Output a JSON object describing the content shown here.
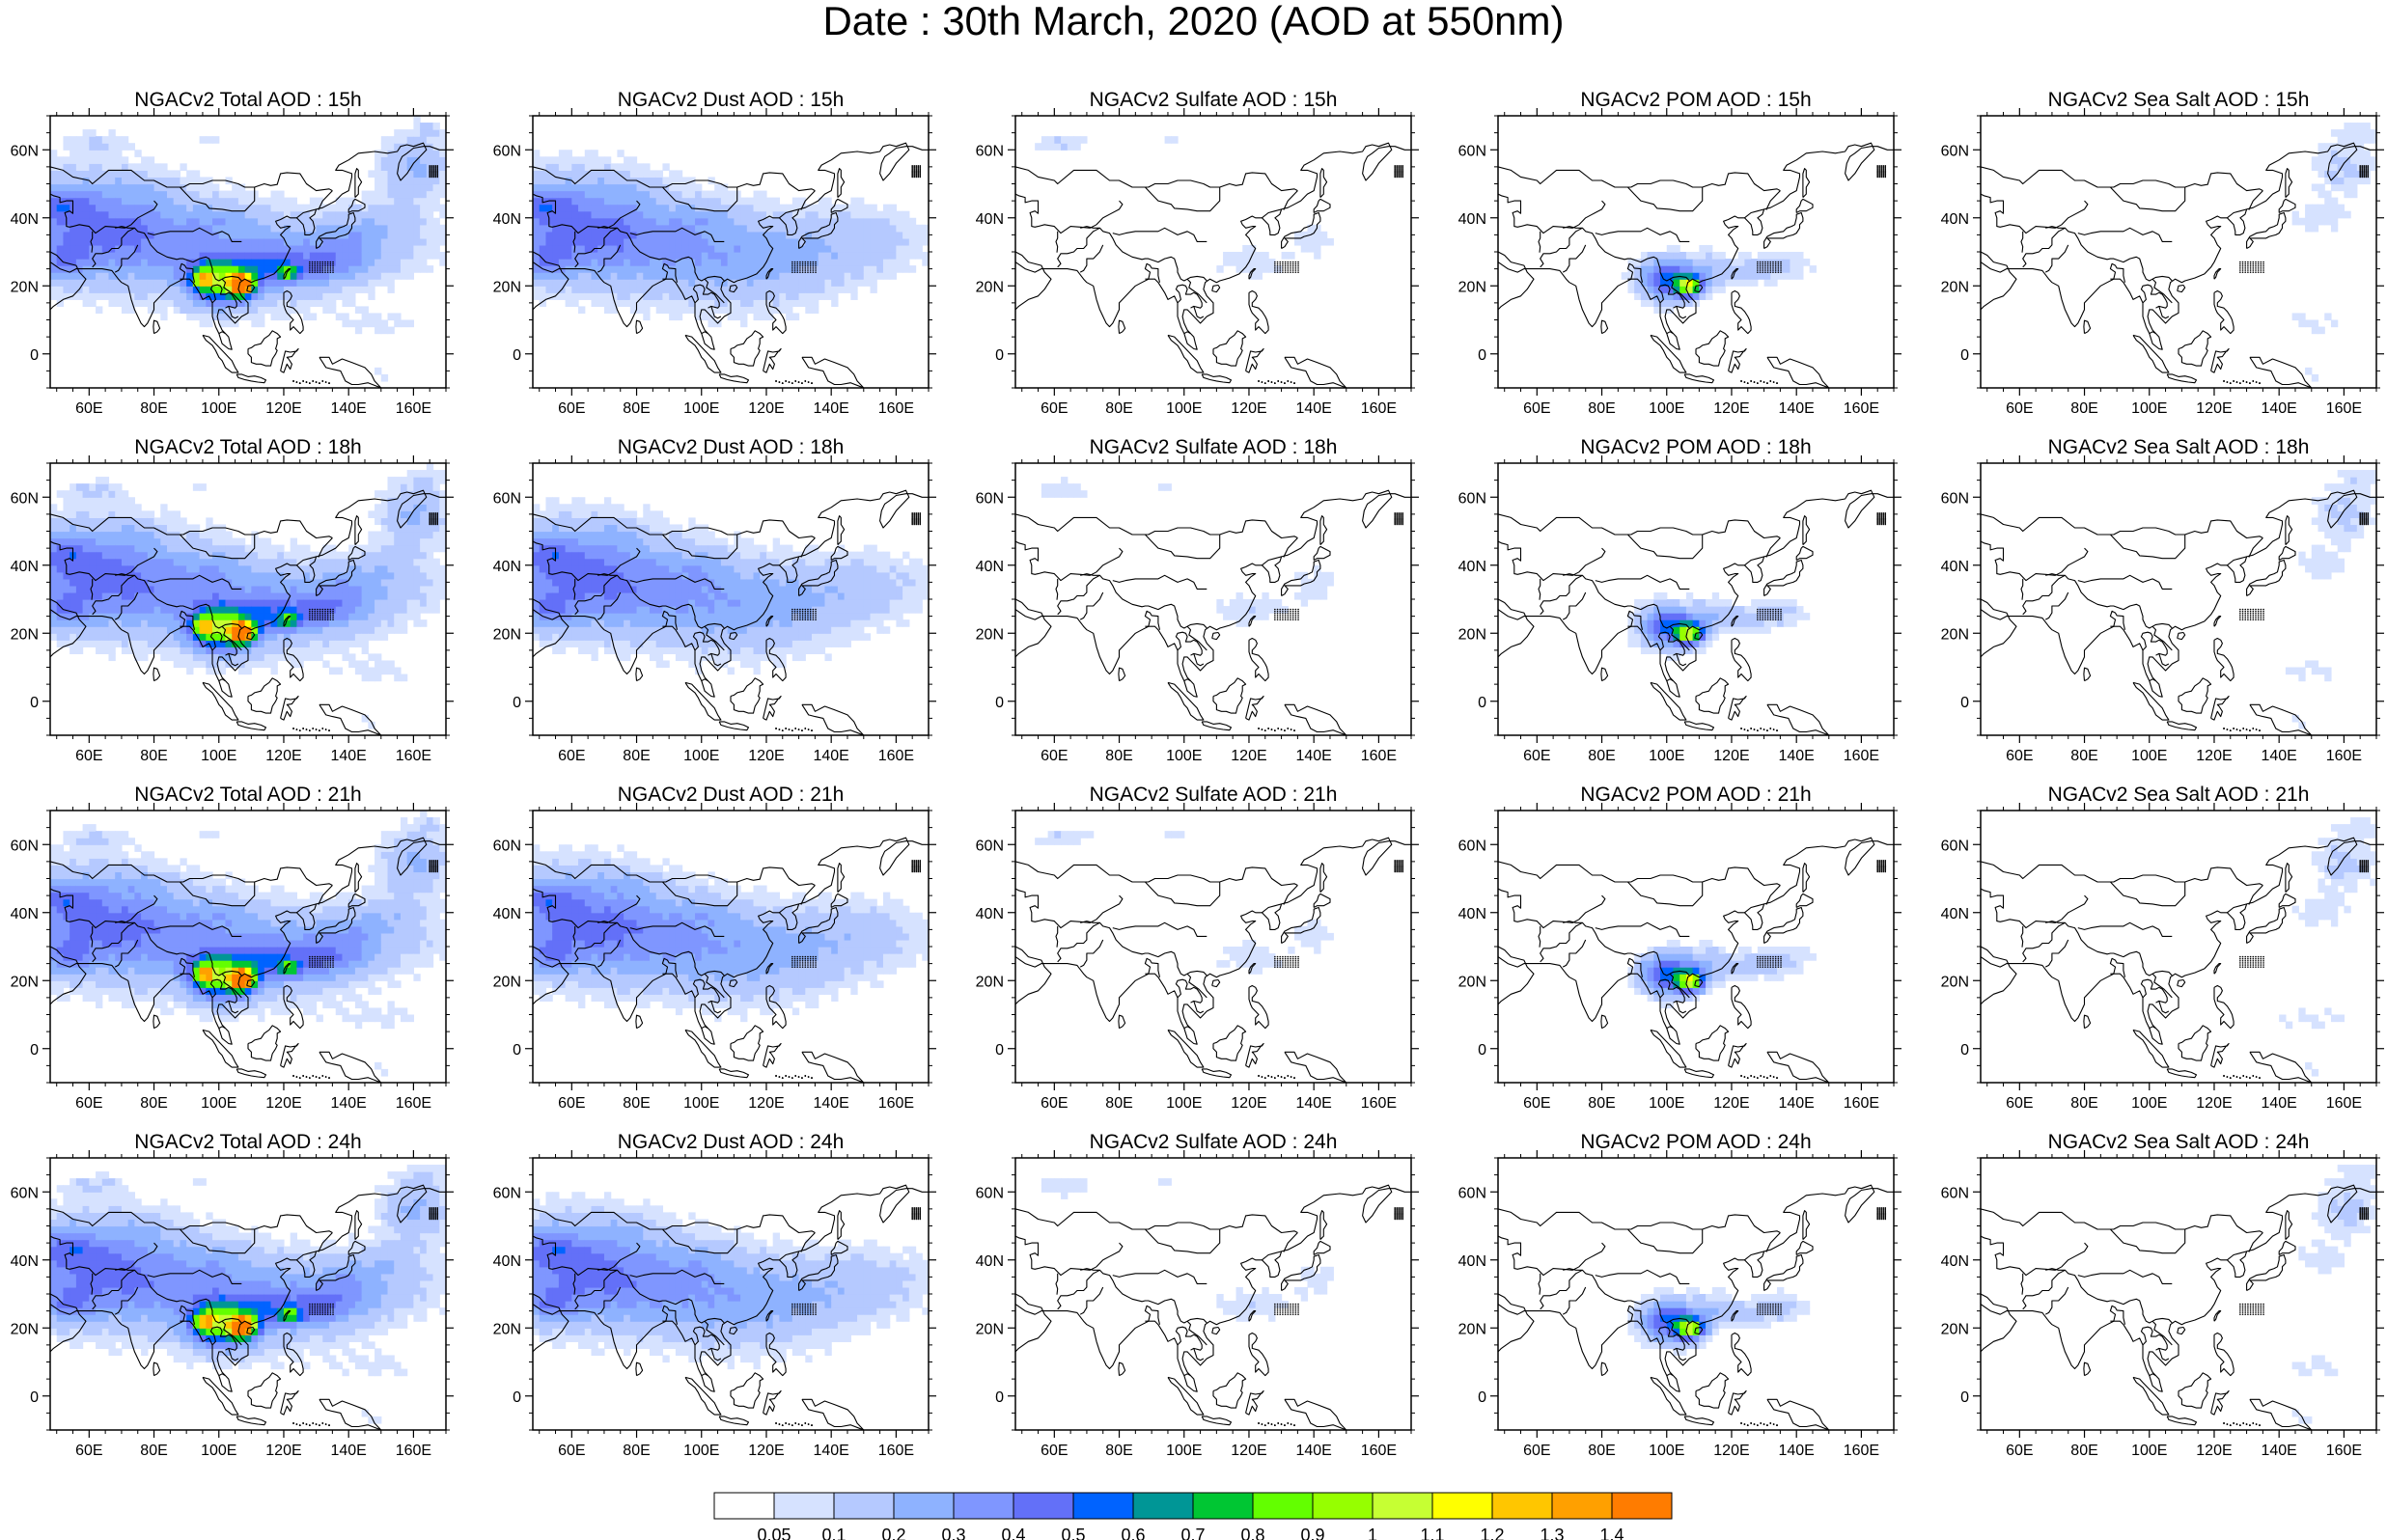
{
  "title": "Date : 30th March, 2020 (AOD at 550nm)",
  "colors": {
    "land_outline": "#000000",
    "background": "#ffffff"
  },
  "panels": [
    {
      "title": "NGACv2 Total AOD : 15h",
      "species": "total",
      "hour": 15
    },
    {
      "title": "NGACv2 Dust AOD : 15h",
      "species": "dust",
      "hour": 15
    },
    {
      "title": "NGACv2 Sulfate AOD : 15h",
      "species": "sulfate",
      "hour": 15
    },
    {
      "title": "NGACv2 POM AOD : 15h",
      "species": "pom",
      "hour": 15
    },
    {
      "title": "NGACv2 Sea Salt AOD : 15h",
      "species": "seasalt",
      "hour": 15
    },
    {
      "title": "NGACv2 Total AOD : 18h",
      "species": "total",
      "hour": 18
    },
    {
      "title": "NGACv2 Dust AOD : 18h",
      "species": "dust",
      "hour": 18
    },
    {
      "title": "NGACv2 Sulfate AOD : 18h",
      "species": "sulfate",
      "hour": 18
    },
    {
      "title": "NGACv2 POM AOD : 18h",
      "species": "pom",
      "hour": 18
    },
    {
      "title": "NGACv2 Sea Salt AOD : 18h",
      "species": "seasalt",
      "hour": 18
    },
    {
      "title": "NGACv2 Total AOD : 21h",
      "species": "total",
      "hour": 21
    },
    {
      "title": "NGACv2 Dust AOD : 21h",
      "species": "dust",
      "hour": 21
    },
    {
      "title": "NGACv2 Sulfate AOD : 21h",
      "species": "sulfate",
      "hour": 21
    },
    {
      "title": "NGACv2 POM AOD : 21h",
      "species": "pom",
      "hour": 21
    },
    {
      "title": "NGACv2 Sea Salt AOD : 21h",
      "species": "seasalt",
      "hour": 21
    },
    {
      "title": "NGACv2 Total AOD : 24h",
      "species": "total",
      "hour": 24
    },
    {
      "title": "NGACv2 Dust AOD : 24h",
      "species": "dust",
      "hour": 24
    },
    {
      "title": "NGACv2 Sulfate AOD : 24h",
      "species": "sulfate",
      "hour": 24
    },
    {
      "title": "NGACv2 POM AOD : 24h",
      "species": "pom",
      "hour": 24
    },
    {
      "title": "NGACv2 Sea Salt  AOD : 24h",
      "species": "seasalt",
      "hour": 24
    }
  ],
  "map_extent": {
    "lon": [
      48,
      170
    ],
    "lat": [
      -10,
      70
    ]
  },
  "lon_ticks": [
    "60E",
    "80E",
    "100E",
    "120E",
    "140E",
    "160E"
  ],
  "lon_tick_values": [
    60,
    80,
    100,
    120,
    140,
    160
  ],
  "lat_ticks": [
    "60N",
    "40N",
    "20N",
    "0"
  ],
  "lat_tick_values": [
    60,
    40,
    20,
    0
  ],
  "colorbar": {
    "labels": [
      "0.05",
      "0.1",
      "0.2",
      "0.3",
      "0.4",
      "0.5",
      "0.6",
      "0.7",
      "0.8",
      "0.9",
      "1",
      "1.1",
      "1.2",
      "1.3",
      "1.4"
    ],
    "colors": [
      "#ffffff",
      "#d6e2ff",
      "#b5c9ff",
      "#8eb2ff",
      "#7f96ff",
      "#6370f8",
      "#0063ff",
      "#009696",
      "#00c633",
      "#63ff00",
      "#96ff00",
      "#c6ff33",
      "#ffff00",
      "#ffc600",
      "#ffa000",
      "#ff7c00",
      "#ff1900"
    ]
  }
}
